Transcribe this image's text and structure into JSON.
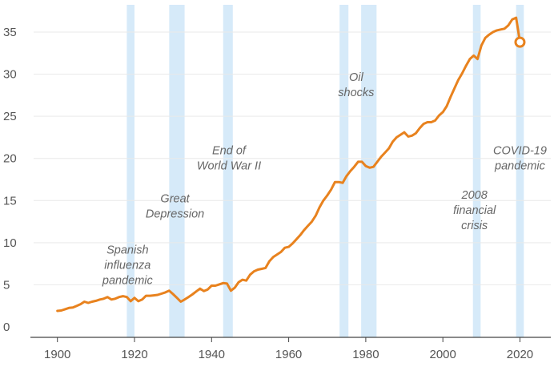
{
  "chart_data": {
    "type": "line",
    "title": "",
    "xlabel": "",
    "ylabel": "",
    "xlim": [
      1893,
      2028
    ],
    "ylim": [
      0,
      37
    ],
    "x_ticks": [
      1900,
      1920,
      1940,
      1960,
      1980,
      2000,
      2020
    ],
    "y_ticks": [
      0,
      5,
      10,
      15,
      20,
      25,
      30,
      35
    ],
    "grid": "horizontal",
    "colors": {
      "line": "#e8821e",
      "shade": "#cfe6f8",
      "grid": "#e9e9e9",
      "axis": "#444444",
      "tick_text": "#555555",
      "annotation_text": "#666666"
    },
    "series": [
      {
        "x": [
          1900,
          1901,
          1902,
          1903,
          1904,
          1905,
          1906,
          1907,
          1908,
          1909,
          1910,
          1911,
          1912,
          1913,
          1914,
          1915,
          1916,
          1917,
          1918,
          1919,
          1920,
          1921,
          1922,
          1923,
          1924,
          1925,
          1926,
          1927,
          1928,
          1929,
          1930,
          1931,
          1932,
          1933,
          1934,
          1935,
          1936,
          1937,
          1938,
          1939,
          1940,
          1941,
          1942,
          1943,
          1944,
          1945,
          1946,
          1947,
          1948,
          1949,
          1950,
          1951,
          1952,
          1953,
          1954,
          1955,
          1956,
          1957,
          1958,
          1959,
          1960,
          1961,
          1962,
          1963,
          1964,
          1965,
          1966,
          1967,
          1968,
          1969,
          1970,
          1971,
          1972,
          1973,
          1974,
          1975,
          1976,
          1977,
          1978,
          1979,
          1980,
          1981,
          1982,
          1983,
          1984,
          1985,
          1986,
          1987,
          1988,
          1989,
          1990,
          1991,
          1992,
          1993,
          1994,
          1995,
          1996,
          1997,
          1998,
          1999,
          2000,
          2001,
          2002,
          2003,
          2004,
          2005,
          2006,
          2007,
          2008,
          2009,
          2010,
          2011,
          2012,
          2013,
          2014,
          2015,
          2016,
          2017,
          2018,
          2019,
          2020
        ],
        "values": [
          1.9,
          1.95,
          2.1,
          2.25,
          2.3,
          2.5,
          2.7,
          3.0,
          2.85,
          3.0,
          3.1,
          3.25,
          3.35,
          3.55,
          3.25,
          3.35,
          3.55,
          3.65,
          3.55,
          3.05,
          3.45,
          3.05,
          3.25,
          3.7,
          3.7,
          3.75,
          3.8,
          3.95,
          4.1,
          4.3,
          3.9,
          3.45,
          3.0,
          3.25,
          3.55,
          3.85,
          4.2,
          4.55,
          4.25,
          4.45,
          4.9,
          4.9,
          5.05,
          5.2,
          5.15,
          4.3,
          4.65,
          5.3,
          5.6,
          5.5,
          6.2,
          6.6,
          6.8,
          6.9,
          7.0,
          7.8,
          8.3,
          8.6,
          8.9,
          9.4,
          9.5,
          9.9,
          10.4,
          10.9,
          11.5,
          12.0,
          12.5,
          13.2,
          14.2,
          15.0,
          15.6,
          16.3,
          17.2,
          17.2,
          17.1,
          17.9,
          18.5,
          19.0,
          19.6,
          19.6,
          19.1,
          18.9,
          19.0,
          19.6,
          20.2,
          20.7,
          21.2,
          22.0,
          22.5,
          22.8,
          23.1,
          22.6,
          22.7,
          23.0,
          23.6,
          24.1,
          24.3,
          24.3,
          24.5,
          25.1,
          25.5,
          26.2,
          27.3,
          28.3,
          29.3,
          30.1,
          31.0,
          31.8,
          32.2,
          31.8,
          33.4,
          34.3,
          34.7,
          35.0,
          35.2,
          35.3,
          35.4,
          35.8,
          36.5,
          36.7,
          33.8
        ]
      }
    ],
    "shaded_periods": [
      {
        "name": "spanish-flu",
        "start": 1918,
        "end": 1920
      },
      {
        "name": "great-depression",
        "start": 1929,
        "end": 1933
      },
      {
        "name": "end-of-ww2",
        "start": 1943,
        "end": 1945.5
      },
      {
        "name": "oil-shock-1",
        "start": 1973.2,
        "end": 1975.5
      },
      {
        "name": "oil-shock-2",
        "start": 1978.8,
        "end": 1982.8
      },
      {
        "name": "financial-crisis-2008",
        "start": 2007.8,
        "end": 2009.8
      },
      {
        "name": "covid-19",
        "start": 2019,
        "end": 2021
      }
    ],
    "annotations": [
      {
        "id": "spanish-flu",
        "lines": [
          "Spanish",
          "influenza",
          "pandemic"
        ],
        "x": 1918.2,
        "y": 8.7
      },
      {
        "id": "great-depression",
        "lines": [
          "Great",
          "Depression"
        ],
        "x": 1930.5,
        "y": 14.8
      },
      {
        "id": "end-of-ww2",
        "lines": [
          "End of",
          "World War II"
        ],
        "x": 1944.5,
        "y": 20.5
      },
      {
        "id": "oil-shocks",
        "lines": [
          "Oil",
          "shocks"
        ],
        "x": 1977.5,
        "y": 29.2
      },
      {
        "id": "financial-crisis",
        "lines": [
          "2008",
          "financial",
          "crisis"
        ],
        "x": 2008.2,
        "y": 15.2
      },
      {
        "id": "covid-19",
        "lines": [
          "COVID-19",
          "pandemic"
        ],
        "x": 2020,
        "y": 20.5
      }
    ],
    "endpoint_marker": {
      "x": 2020,
      "y": 33.8,
      "style": "open-circle"
    }
  }
}
